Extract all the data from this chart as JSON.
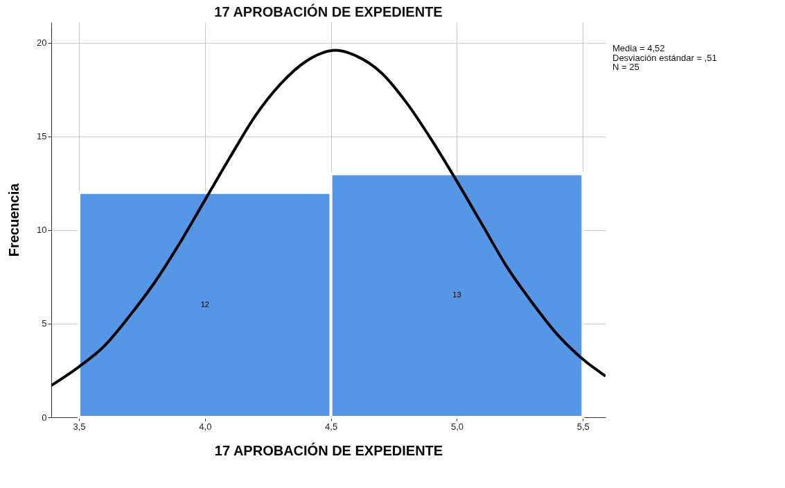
{
  "chart_data": {
    "type": "histogram",
    "title": "17 APROBACIÓN DE EXPEDIENTE",
    "xlabel": "17 APROBACIÓN DE EXPEDIENTE",
    "ylabel": "Frecuencia",
    "bins": [
      3.5,
      4.5,
      5.5
    ],
    "series": [
      {
        "color": "#5596e6",
        "values": [
          12,
          13
        ],
        "value_labels": [
          "12",
          "13"
        ]
      },
      {
        "type": "line",
        "color": "#000000",
        "x": [
          3.39,
          3.5,
          3.6,
          3.7,
          3.8,
          3.9,
          4.0,
          4.1,
          4.2,
          4.3,
          4.4,
          4.52,
          4.6,
          4.7,
          4.8,
          4.9,
          5.0,
          5.1,
          5.2,
          5.3,
          5.4,
          5.5,
          5.59
        ],
        "values": [
          1.7,
          2.7,
          3.8,
          5.4,
          7.2,
          9.3,
          11.6,
          13.9,
          16.1,
          17.8,
          19.0,
          19.6,
          19.3,
          18.4,
          16.8,
          14.8,
          12.6,
          10.3,
          8.0,
          6.1,
          4.4,
          3.1,
          2.2
        ]
      }
    ],
    "xlim": [
      3.39,
      5.59
    ],
    "xticks": [
      {
        "value": 3.5,
        "label": "3,5"
      },
      {
        "value": 4.0,
        "label": "4,0"
      },
      {
        "value": 4.5,
        "label": "4,5"
      },
      {
        "value": 5.0,
        "label": "5,0"
      },
      {
        "value": 5.5,
        "label": "5,5"
      }
    ],
    "ylim": [
      0,
      21.1
    ],
    "yticks": [
      0,
      5,
      10,
      15,
      20
    ],
    "grid": true,
    "annotations": [
      "Media = 4,52",
      "Desviación estándar = ,51",
      "N = 25"
    ]
  }
}
